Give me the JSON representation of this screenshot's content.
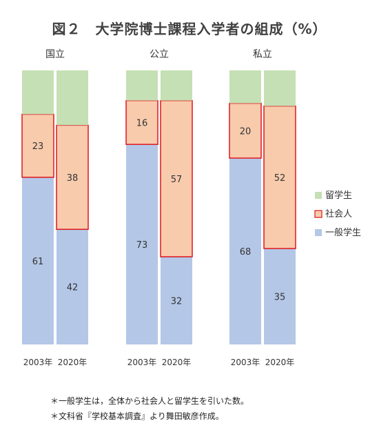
{
  "chart_data": {
    "type": "bar",
    "stacked": true,
    "percent": true,
    "title": "図２　大学院博士課程入学者の組成（%）",
    "groups": [
      {
        "name": "国立",
        "years": [
          "2003年",
          "2020年"
        ]
      },
      {
        "name": "公立",
        "years": [
          "2003年",
          "2020年"
        ]
      },
      {
        "name": "私立",
        "years": [
          "2003年",
          "2020年"
        ]
      }
    ],
    "categories": [
      "国立 2003年",
      "国立 2020年",
      "公立 2003年",
      "公立 2020年",
      "私立 2003年",
      "私立 2020年"
    ],
    "series": [
      {
        "name": "一般学生",
        "values": [
          61,
          42,
          73,
          32,
          68,
          35
        ],
        "labels": [
          "61",
          "42",
          "73",
          "32",
          "68",
          "35"
        ],
        "color": "#b4c7e7"
      },
      {
        "name": "社会人",
        "values": [
          23,
          38,
          16,
          57,
          20,
          52
        ],
        "labels": [
          "23",
          "38",
          "16",
          "57",
          "20",
          "52"
        ],
        "color": "#f8cbad",
        "border": "#e0151b"
      },
      {
        "name": "留学生",
        "values": [
          16,
          20,
          11,
          11,
          12,
          13
        ],
        "labels": [],
        "color": "#c5e0b4"
      }
    ],
    "ylim": [
      0,
      100
    ],
    "legend": {
      "position": "right",
      "order": [
        "留学生",
        "社会人",
        "一般学生"
      ]
    }
  },
  "notes": [
    "＊一般学生は，全体から社会人と留学生を引いた数。",
    "＊文科省『学校基本調査』より舞田敏彦作成。"
  ]
}
